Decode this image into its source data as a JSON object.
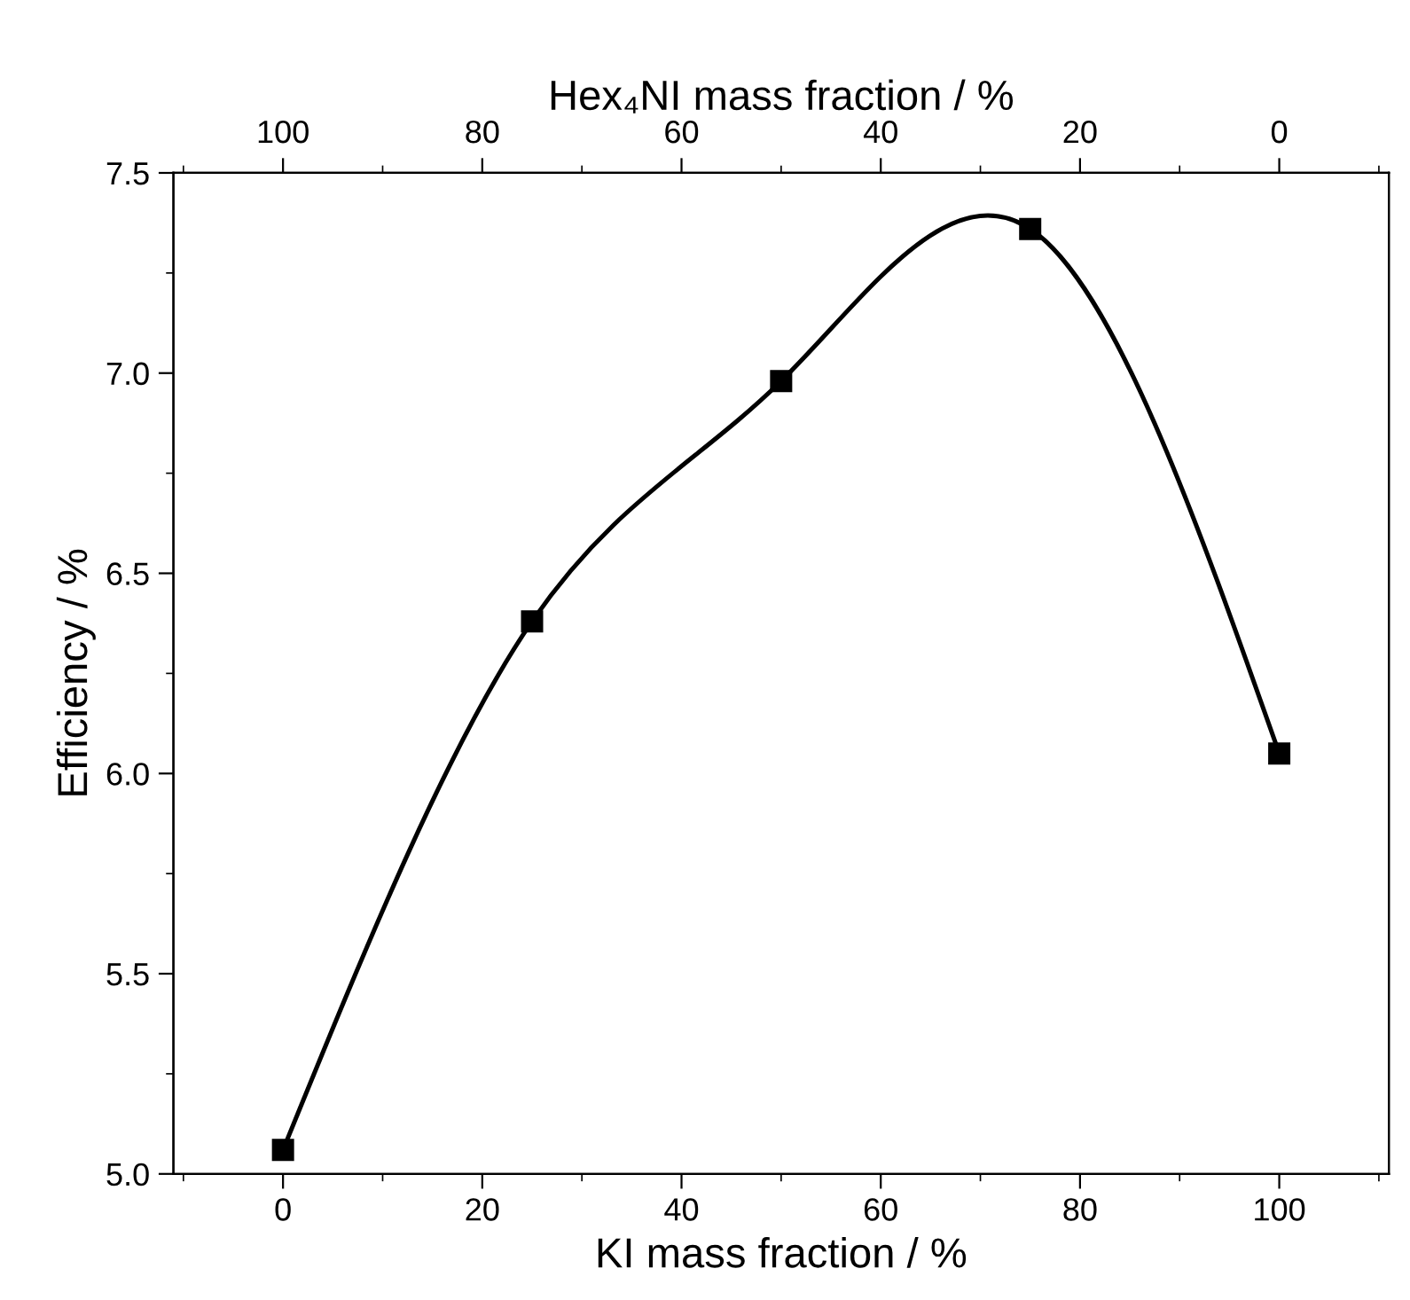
{
  "chart_data": {
    "type": "line",
    "xlabel": "KI mass fraction / %",
    "ylabel": "Efficiency / %",
    "x2label": "Hex₄NI mass fraction / %",
    "x": [
      0,
      25,
      50,
      75,
      100
    ],
    "series": [
      {
        "color": "#000000",
        "values": [
          5.06,
          6.38,
          6.98,
          7.36,
          6.05
        ]
      }
    ],
    "xlim": [
      -11,
      111
    ],
    "xticks": [
      0,
      20,
      40,
      60,
      80,
      100
    ],
    "x2lim": [
      111,
      -11
    ],
    "x2ticks": [
      100,
      80,
      60,
      40,
      20,
      0
    ],
    "ylim": [
      5.0,
      7.5
    ],
    "yticks": [
      {
        "value": 5.0,
        "label": "5.0"
      },
      {
        "value": 5.5,
        "label": "5.5"
      },
      {
        "value": 6.0,
        "label": "6.0"
      },
      {
        "value": 6.5,
        "label": "6.5"
      },
      {
        "value": 7.0,
        "label": "7.0"
      },
      {
        "value": 7.5,
        "label": "7.5"
      }
    ],
    "marker": "square",
    "line_style": "solid",
    "grid": false,
    "legend": false
  }
}
